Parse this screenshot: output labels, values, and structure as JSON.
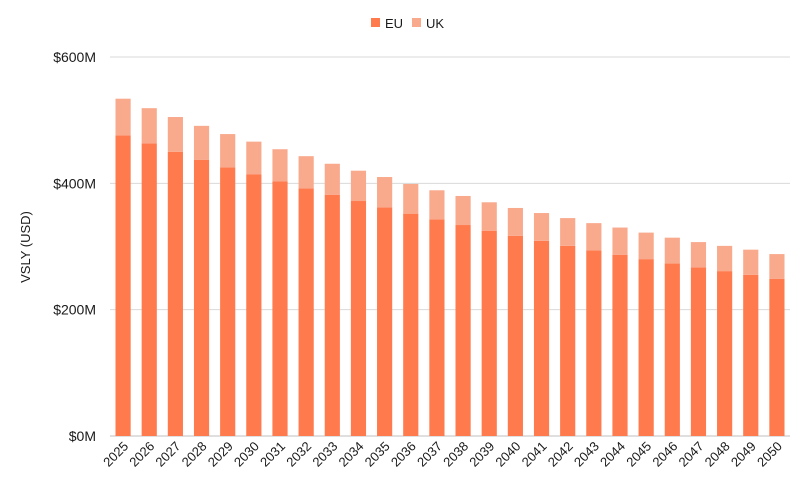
{
  "chart_data": {
    "type": "bar",
    "stacked": true,
    "title": "",
    "xlabel": "",
    "ylabel": "VSLY (USD)",
    "ylim": [
      0,
      600
    ],
    "y_ticks": [
      {
        "value": 0,
        "label": "$0M"
      },
      {
        "value": 200,
        "label": "$200M"
      },
      {
        "value": 400,
        "label": "$400M"
      },
      {
        "value": 600,
        "label": "$600M"
      }
    ],
    "grid": true,
    "legend": "top-center",
    "categories": [
      "2025",
      "2026",
      "2027",
      "2028",
      "2029",
      "2030",
      "2031",
      "2032",
      "2033",
      "2034",
      "2035",
      "2036",
      "2037",
      "2038",
      "2039",
      "2040",
      "2041",
      "2042",
      "2043",
      "2044",
      "2045",
      "2046",
      "2047",
      "2048",
      "2049",
      "2050"
    ],
    "series": [
      {
        "name": "EU",
        "color": "#ff7a4d",
        "values": [
          476,
          463,
          450,
          437,
          425,
          414,
          403,
          392,
          382,
          372,
          362,
          352,
          343,
          334,
          325,
          317,
          309,
          301,
          294,
          287,
          280,
          273,
          267,
          261,
          255,
          249
        ]
      },
      {
        "name": "UK",
        "color": "#f9aa8d",
        "values": [
          58,
          56,
          55,
          54,
          53,
          52,
          51,
          51,
          49,
          48,
          48,
          47,
          46,
          46,
          45,
          44,
          44,
          44,
          43,
          43,
          42,
          41,
          40,
          40,
          40,
          39
        ]
      }
    ]
  }
}
